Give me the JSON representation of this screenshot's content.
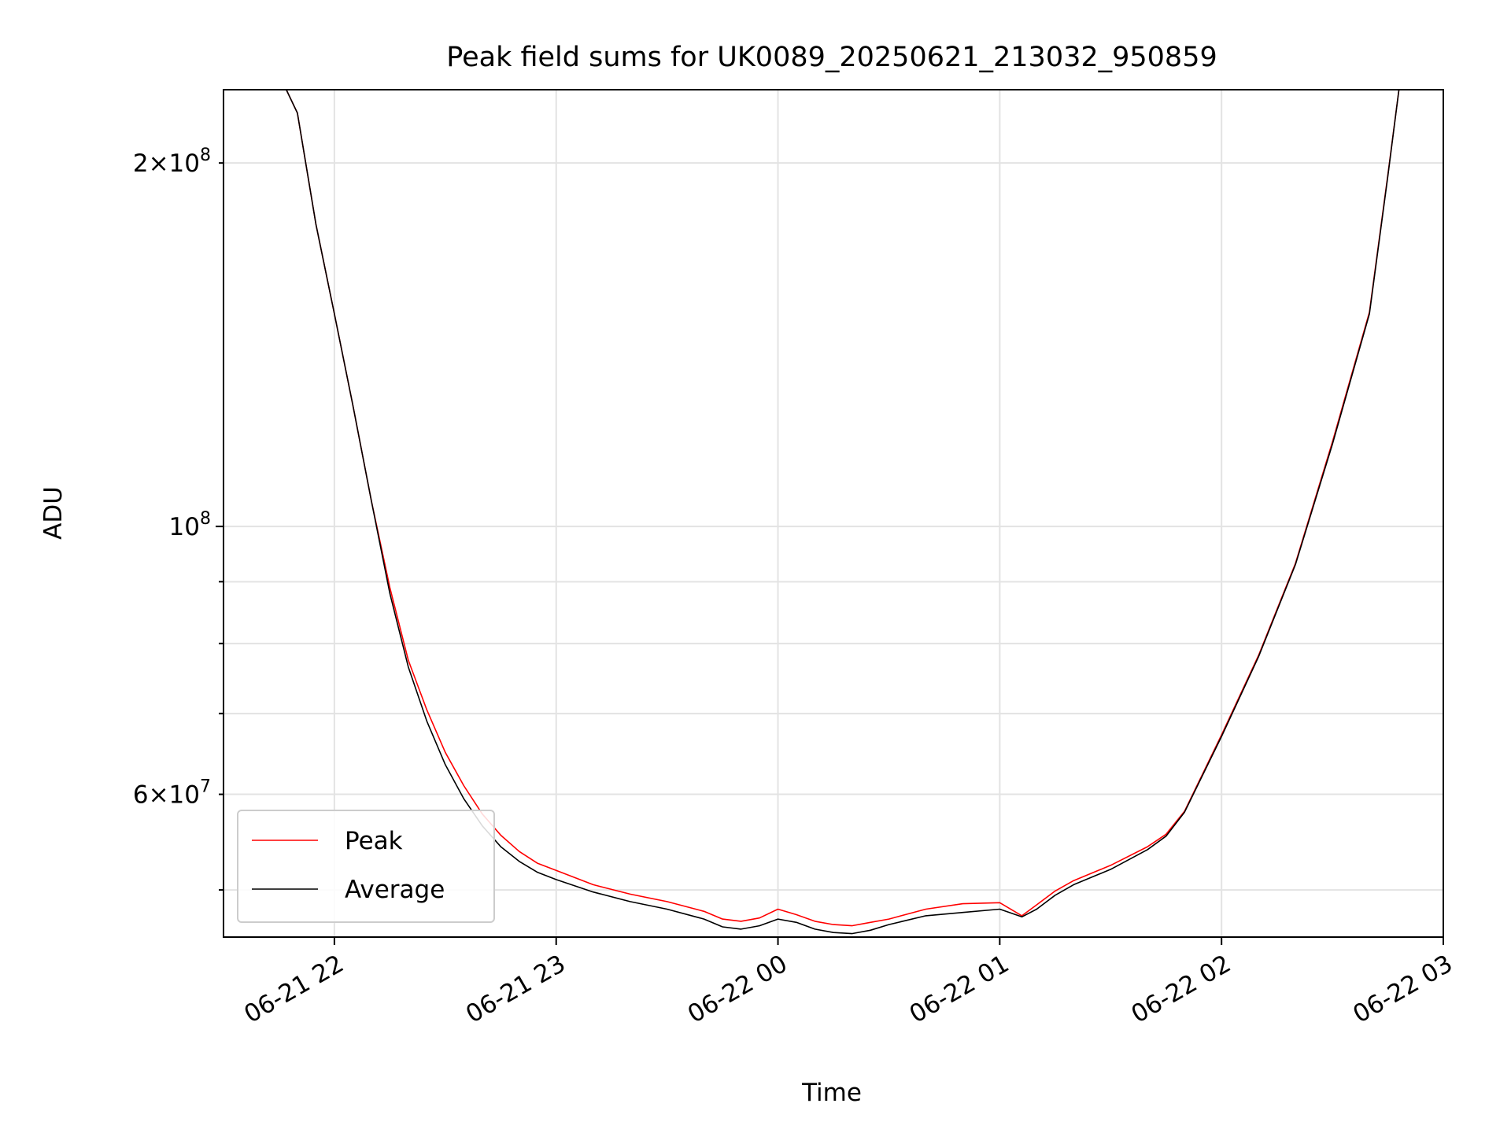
{
  "chart_data": {
    "type": "line",
    "title": "Peak field sums for UK0089_20250621_213032_950859",
    "xlabel": "Time",
    "ylabel": "ADU",
    "yscale": "log",
    "xlim": [
      "2025-06-21 21:30",
      "2025-06-22 03:00"
    ],
    "ylim": [
      45700000,
      230000000
    ],
    "x_ticks": [
      {
        "value": "2025-06-21 22:00",
        "label": "06-21 22"
      },
      {
        "value": "2025-06-21 23:00",
        "label": "06-21 23"
      },
      {
        "value": "2025-06-22 00:00",
        "label": "06-22 00"
      },
      {
        "value": "2025-06-22 01:00",
        "label": "06-22 01"
      },
      {
        "value": "2025-06-22 02:00",
        "label": "06-22 02"
      },
      {
        "value": "2025-06-22 03:00",
        "label": "06-22 03"
      }
    ],
    "y_ticks_major": [
      {
        "value": 100000000,
        "base": "10",
        "exp": "8",
        "mantissa": ""
      }
    ],
    "y_ticks_minor_labeled": [
      {
        "value": 200000000,
        "mantissa": "2",
        "base": "10",
        "exp": "8"
      },
      {
        "value": 60000000,
        "mantissa": "6",
        "base": "10",
        "exp": "7"
      }
    ],
    "y_ticks_minor": [
      50000000,
      70000000,
      80000000,
      90000000
    ],
    "grid": true,
    "legend": {
      "position": "lower-left",
      "entries": [
        {
          "label": "Peak",
          "color": "#ff0000"
        },
        {
          "label": "Average",
          "color": "#000000"
        }
      ]
    },
    "series": [
      {
        "name": "Average",
        "color": "#000000",
        "x": [
          "2025-06-21 21:47",
          "2025-06-21 21:50",
          "2025-06-21 21:55",
          "2025-06-21 22:00",
          "2025-06-21 22:05",
          "2025-06-21 22:10",
          "2025-06-21 22:15",
          "2025-06-21 22:20",
          "2025-06-21 22:25",
          "2025-06-21 22:30",
          "2025-06-21 22:35",
          "2025-06-21 22:40",
          "2025-06-21 22:45",
          "2025-06-21 22:50",
          "2025-06-21 22:55",
          "2025-06-21 23:00",
          "2025-06-21 23:10",
          "2025-06-21 23:20",
          "2025-06-21 23:30",
          "2025-06-21 23:40",
          "2025-06-21 23:45",
          "2025-06-21 23:50",
          "2025-06-21 23:55",
          "2025-06-22 00:00",
          "2025-06-22 00:05",
          "2025-06-22 00:10",
          "2025-06-22 00:15",
          "2025-06-22 00:20",
          "2025-06-22 00:25",
          "2025-06-22 00:30",
          "2025-06-22 00:40",
          "2025-06-22 00:50",
          "2025-06-22 01:00",
          "2025-06-22 01:06",
          "2025-06-22 01:10",
          "2025-06-22 01:15",
          "2025-06-22 01:20",
          "2025-06-22 01:30",
          "2025-06-22 01:40",
          "2025-06-22 01:45",
          "2025-06-22 01:50",
          "2025-06-22 02:00",
          "2025-06-22 02:10",
          "2025-06-22 02:20",
          "2025-06-22 02:30",
          "2025-06-22 02:40",
          "2025-06-22 02:45",
          "2025-06-22 02:48"
        ],
        "values": [
          230000000,
          220000000,
          178000000,
          150000000,
          126000000,
          105000000,
          88000000,
          76500000,
          69000000,
          63500000,
          59500000,
          56500000,
          54300000,
          52800000,
          51700000,
          51000000,
          49800000,
          48900000,
          48200000,
          47300000,
          46600000,
          46400000,
          46700000,
          47300000,
          47000000,
          46400000,
          46100000,
          46000000,
          46300000,
          46800000,
          47600000,
          47900000,
          48200000,
          47500000,
          48200000,
          49500000,
          50500000,
          52000000,
          54000000,
          55400000,
          58000000,
          67000000,
          78000000,
          93000000,
          117000000,
          150000000,
          195000000,
          230000000
        ]
      },
      {
        "name": "Peak",
        "color": "#ff0000",
        "x": [
          "2025-06-21 21:47",
          "2025-06-21 21:50",
          "2025-06-21 21:55",
          "2025-06-21 22:00",
          "2025-06-21 22:05",
          "2025-06-21 22:10",
          "2025-06-21 22:15",
          "2025-06-21 22:20",
          "2025-06-21 22:25",
          "2025-06-21 22:30",
          "2025-06-21 22:35",
          "2025-06-21 22:40",
          "2025-06-21 22:45",
          "2025-06-21 22:50",
          "2025-06-21 22:55",
          "2025-06-21 23:00",
          "2025-06-21 23:10",
          "2025-06-21 23:20",
          "2025-06-21 23:30",
          "2025-06-21 23:40",
          "2025-06-21 23:45",
          "2025-06-21 23:50",
          "2025-06-21 23:55",
          "2025-06-22 00:00",
          "2025-06-22 00:05",
          "2025-06-22 00:10",
          "2025-06-22 00:15",
          "2025-06-22 00:20",
          "2025-06-22 00:25",
          "2025-06-22 00:30",
          "2025-06-22 00:40",
          "2025-06-22 00:50",
          "2025-06-22 01:00",
          "2025-06-22 01:06",
          "2025-06-22 01:10",
          "2025-06-22 01:15",
          "2025-06-22 01:20",
          "2025-06-22 01:30",
          "2025-06-22 01:40",
          "2025-06-22 01:45",
          "2025-06-22 01:50",
          "2025-06-22 02:00",
          "2025-06-22 02:10",
          "2025-06-22 02:20",
          "2025-06-22 02:30",
          "2025-06-22 02:40",
          "2025-06-22 02:45",
          "2025-06-22 02:48"
        ],
        "values": [
          230000000,
          220000000,
          178000000,
          150000000,
          126000000,
          105000000,
          89000000,
          77500000,
          70500000,
          65000000,
          61000000,
          57800000,
          55500000,
          53800000,
          52600000,
          51900000,
          50500000,
          49600000,
          48900000,
          48000000,
          47300000,
          47100000,
          47400000,
          48200000,
          47700000,
          47100000,
          46800000,
          46700000,
          47000000,
          47300000,
          48200000,
          48700000,
          48800000,
          47600000,
          48600000,
          49900000,
          50900000,
          52400000,
          54300000,
          55600000,
          58100000,
          67200000,
          78200000,
          93200000,
          117500000,
          150500000,
          195500000,
          230000000
        ]
      }
    ]
  }
}
